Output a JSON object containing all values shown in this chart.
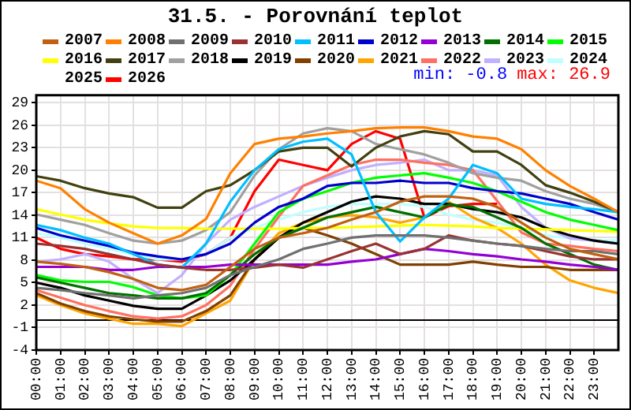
{
  "chart_data": {
    "type": "line",
    "title": "31.5. - Porovnání teplot",
    "annotations": [
      "min: -0.8",
      "max: 26.9"
    ],
    "x": [
      0,
      1,
      2,
      3,
      4,
      5,
      6,
      7,
      8,
      9,
      10,
      11,
      12,
      13,
      14,
      15,
      16,
      17,
      18,
      19,
      20,
      21,
      22,
      23,
      24
    ],
    "xlim": [
      0,
      24
    ],
    "xticks": [
      {
        "value": 0,
        "label": "00:00"
      },
      {
        "value": 1,
        "label": "01:00"
      },
      {
        "value": 2,
        "label": "02:00"
      },
      {
        "value": 3,
        "label": "03:00"
      },
      {
        "value": 4,
        "label": "04:00"
      },
      {
        "value": 5,
        "label": "05:00"
      },
      {
        "value": 6,
        "label": "06:00"
      },
      {
        "value": 7,
        "label": "07:00"
      },
      {
        "value": 8,
        "label": "08:00"
      },
      {
        "value": 9,
        "label": "09:00"
      },
      {
        "value": 10,
        "label": "10:00"
      },
      {
        "value": 11,
        "label": "11:00"
      },
      {
        "value": 12,
        "label": "12:00"
      },
      {
        "value": 13,
        "label": "13:00"
      },
      {
        "value": 14,
        "label": "14:00"
      },
      {
        "value": 15,
        "label": "15:00"
      },
      {
        "value": 16,
        "label": "16:00"
      },
      {
        "value": 17,
        "label": "17:00"
      },
      {
        "value": 18,
        "label": "18:00"
      },
      {
        "value": 19,
        "label": "19:00"
      },
      {
        "value": 20,
        "label": "20:00"
      },
      {
        "value": 21,
        "label": "21:00"
      },
      {
        "value": 22,
        "label": "22:00"
      },
      {
        "value": 23,
        "label": "23:00"
      }
    ],
    "ylim": [
      -4,
      30
    ],
    "yticks": [
      -4,
      -1,
      2,
      5,
      8,
      11,
      14,
      17,
      20,
      23,
      26,
      29
    ],
    "grid": true,
    "legend": "top",
    "marker": "none",
    "line_style": "solid",
    "ref_lines": [
      {
        "axis": "y",
        "value": 0,
        "color": "#000000"
      }
    ],
    "series": [
      {
        "name": "2007",
        "color": "#c06010",
        "values": [
          7.8,
          7.5,
          7.1,
          6.4,
          5.5,
          4.3,
          4,
          4.7,
          7.1,
          9.5,
          11,
          11.6,
          12.3,
          13.4,
          14.4,
          15.8,
          16.5,
          16.5,
          16.2,
          15.1,
          13,
          11,
          9.5,
          8.8,
          8.1
        ]
      },
      {
        "name": "2008",
        "color": "#ff8000",
        "values": [
          18.6,
          17.6,
          14.8,
          13,
          11.6,
          10.2,
          11.3,
          13.5,
          19.6,
          23.5,
          24.2,
          24.5,
          24.9,
          25.2,
          25.6,
          25.7,
          25.7,
          25.2,
          24.5,
          24.2,
          22.8,
          20,
          17.9,
          16.2,
          14.4
        ]
      },
      {
        "name": "2009",
        "color": "#707070",
        "values": [
          4.3,
          4,
          3.6,
          3.3,
          2.9,
          3.3,
          3.6,
          4.3,
          6,
          7.1,
          8.1,
          9.5,
          10.2,
          11,
          11.3,
          11.3,
          11.3,
          11,
          10.6,
          10.2,
          9.9,
          9.5,
          9.2,
          9.2,
          8.8
        ]
      },
      {
        "name": "2010",
        "color": "#993333",
        "values": [
          10.2,
          9.9,
          9.5,
          8.8,
          8.1,
          7.4,
          7,
          6.7,
          6.7,
          7,
          7.4,
          7,
          8.1,
          9.2,
          10.2,
          8.8,
          9.5,
          11.3,
          10.6,
          10.2,
          9.9,
          9.2,
          8.5,
          8.1,
          8.1
        ]
      },
      {
        "name": "2011",
        "color": "#00bfff",
        "values": [
          12.7,
          12,
          11,
          10.2,
          8.8,
          7.4,
          7,
          10.2,
          15.8,
          20,
          22.8,
          23.8,
          24.2,
          22.1,
          14.4,
          10.5,
          13.7,
          16.2,
          20.7,
          19.6,
          16.2,
          15.5,
          15.1,
          14.8,
          14.4
        ]
      },
      {
        "name": "2012",
        "color": "#0000cd",
        "values": [
          12.3,
          11.3,
          10.6,
          9.9,
          9,
          8.5,
          8.1,
          8.8,
          10.2,
          13,
          15.1,
          16.2,
          17.9,
          18.3,
          18.3,
          18.6,
          18.3,
          18.3,
          17.6,
          17.2,
          16.9,
          16.2,
          15.5,
          14.4,
          13.4
        ]
      },
      {
        "name": "2013",
        "color": "#9400d3",
        "values": [
          7.1,
          7.1,
          7.1,
          6.7,
          6.7,
          7.1,
          7.1,
          7.1,
          7.4,
          7.4,
          7.4,
          7.4,
          7.4,
          7.8,
          8.1,
          8.8,
          9.5,
          9.2,
          8.8,
          8.5,
          8.1,
          7.8,
          7.4,
          7.1,
          6.7
        ]
      },
      {
        "name": "2014",
        "color": "#007000",
        "values": [
          5.7,
          5,
          4.3,
          3.6,
          3.3,
          2.9,
          2.9,
          3.6,
          6,
          8.8,
          11,
          12.3,
          13.7,
          14.4,
          15.1,
          14.4,
          13.7,
          15.4,
          15.1,
          13.7,
          12.3,
          10.2,
          8.8,
          7.4,
          6.7
        ]
      },
      {
        "name": "2015",
        "color": "#00ff00",
        "values": [
          6,
          5.3,
          5.1,
          5.1,
          4.4,
          3.3,
          2.9,
          3.3,
          6,
          10.2,
          14.4,
          16.2,
          17.2,
          18.3,
          19,
          19.3,
          19.6,
          19,
          18.3,
          17.2,
          15.8,
          14.4,
          13.4,
          12.7,
          12
        ]
      },
      {
        "name": "2016",
        "color": "#ffff00",
        "values": [
          14.8,
          14.1,
          13.4,
          12.9,
          12.5,
          12.3,
          12.3,
          12.2,
          12.2,
          12.2,
          12.2,
          12.3,
          12.3,
          12.4,
          12.5,
          12.6,
          12.7,
          12.6,
          12.5,
          12.3,
          12.2,
          12.1,
          12,
          11.9,
          11.8
        ]
      },
      {
        "name": "2017",
        "color": "#404010",
        "values": [
          19.2,
          18.6,
          17.6,
          16.9,
          16.4,
          15,
          15,
          17.2,
          18,
          20,
          22.5,
          23,
          23,
          20.5,
          23,
          24.5,
          25.2,
          24.8,
          22.5,
          22.5,
          20.7,
          18,
          17,
          15.8,
          14.4
        ]
      },
      {
        "name": "2018",
        "color": "#a0a0a0",
        "values": [
          14.1,
          13.4,
          12.7,
          11.6,
          10.6,
          10.2,
          10.6,
          12,
          14.4,
          19.3,
          22.8,
          24.9,
          25.6,
          25.2,
          23.5,
          22.8,
          22.1,
          21,
          19.6,
          19,
          18.6,
          17.2,
          16.2,
          15.5,
          14.4
        ]
      },
      {
        "name": "2019",
        "color": "#000000",
        "values": [
          5,
          4.3,
          3.3,
          2.6,
          1.9,
          1.5,
          1.5,
          3.3,
          5.3,
          8.1,
          11,
          13,
          14.4,
          15.8,
          16.5,
          16.2,
          15.5,
          15.5,
          14.8,
          14.4,
          13.7,
          12.3,
          11.3,
          10.6,
          10.2
        ]
      },
      {
        "name": "2020",
        "color": "#804000",
        "values": [
          3.6,
          2.2,
          1.2,
          0.5,
          0.1,
          -0.2,
          -0.2,
          1.2,
          3.3,
          8.1,
          11,
          12.3,
          11.3,
          10.2,
          8.8,
          7.4,
          7.4,
          7.4,
          7.8,
          7.4,
          7.1,
          7.1,
          6.7,
          6.7,
          6.7
        ]
      },
      {
        "name": "2021",
        "color": "#ffa500",
        "values": [
          3.3,
          2,
          0.9,
          0.2,
          -0.5,
          -0.5,
          -0.8,
          0.9,
          2.6,
          8.1,
          11.6,
          13,
          13.7,
          14,
          13.7,
          13,
          13.7,
          15.8,
          13.7,
          12.3,
          10.2,
          7.4,
          5.3,
          4.3,
          3.6
        ]
      },
      {
        "name": "2022",
        "color": "#ff7060",
        "values": [
          4,
          3,
          2,
          1.2,
          0.5,
          0.2,
          0.5,
          2,
          4.6,
          9.5,
          13.8,
          17.9,
          19.3,
          20.7,
          21.4,
          21.4,
          21,
          20.7,
          20,
          15.9,
          11.7,
          10.2,
          9.9,
          9.5,
          9.2
        ]
      },
      {
        "name": "2023",
        "color": "#c0b0ff",
        "values": [
          7.8,
          8.1,
          8.8,
          7.8,
          5.5,
          3.6,
          6,
          10.2,
          13.4,
          15.1,
          16.5,
          17.9,
          19,
          20,
          20.7,
          21,
          21.4,
          20,
          20,
          19.3,
          15.1,
          12.3,
          10.9,
          10.6,
          10.2
        ]
      },
      {
        "name": "2024",
        "color": "#c0ffff",
        "values": [
          11.6,
          11,
          10.2,
          9.5,
          8.8,
          8.1,
          8.1,
          8.8,
          11,
          12.3,
          13.4,
          14.4,
          15.1,
          15.5,
          15.5,
          15.5,
          15.1,
          14.1,
          13.4,
          13,
          12.3,
          11.3,
          10.9,
          10.6,
          10.6
        ]
      },
      {
        "name": "2025",
        "values": [
          null,
          null,
          null,
          null,
          null,
          null,
          null,
          null,
          null,
          null,
          null,
          null,
          null,
          null,
          null,
          null,
          null,
          null,
          null,
          null,
          null,
          null,
          null,
          null,
          null
        ]
      },
      {
        "name": "2026",
        "color": "#ff0000",
        "values": [
          11,
          9.5,
          8.8,
          8.5,
          8.1,
          8.1,
          7.8,
          8.8,
          11,
          17.2,
          21.4,
          20.7,
          20,
          23.5,
          25.2,
          24.2,
          13.7,
          15.2,
          15.5,
          15.5,
          null,
          null,
          null,
          null,
          null
        ]
      }
    ]
  }
}
